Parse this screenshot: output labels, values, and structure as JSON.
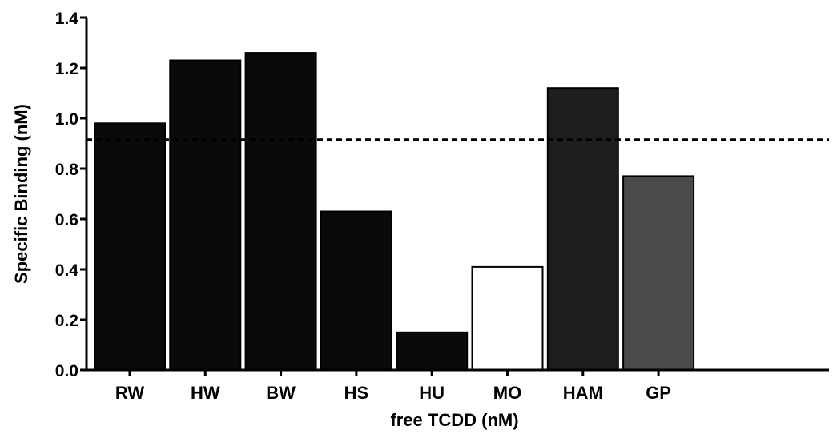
{
  "chart_data": {
    "type": "bar",
    "title": "",
    "xlabel": "free TCDD (nM)",
    "ylabel": "Specific Binding (nM)",
    "ylim": [
      0,
      1.4
    ],
    "yticks": [
      "0.0",
      "0.2",
      "0.4",
      "0.6",
      "0.8",
      "1.0",
      "1.2",
      "1.4"
    ],
    "grid": false,
    "categories": [
      "RW",
      "HW",
      "BW",
      "HS",
      "HU",
      "MO",
      "HAM",
      "GP"
    ],
    "values": [
      0.98,
      1.23,
      1.26,
      0.63,
      0.15,
      0.41,
      1.12,
      0.77
    ],
    "bar_colors": [
      "#0a0a0a",
      "#0a0a0a",
      "#0a0a0a",
      "#0a0a0a",
      "#0a0a0a",
      "#ffffff",
      "#1e1e1e",
      "#4a4a4a"
    ],
    "reference_line": {
      "value": 0.915,
      "style": "dashed"
    }
  }
}
